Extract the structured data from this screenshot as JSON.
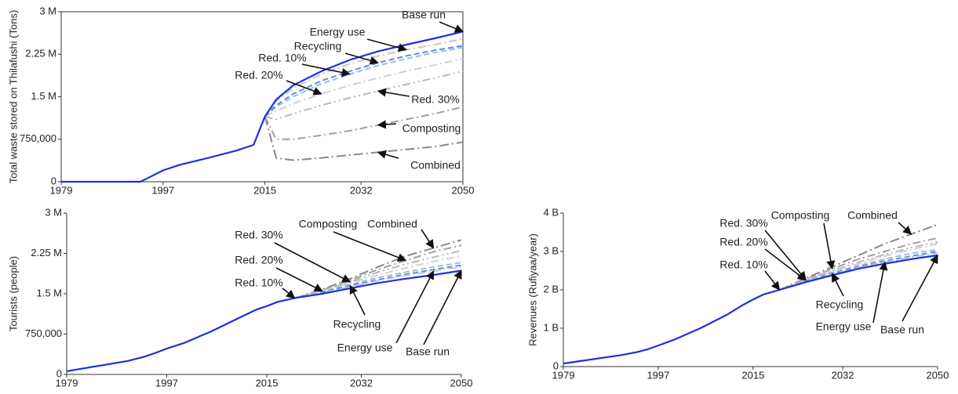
{
  "chart_data": [
    {
      "type": "line",
      "ylabel": "Total waste stored on Thilafushi (Tons)",
      "frame": true,
      "x": [
        1979,
        1990,
        1993,
        1995,
        1997,
        2000,
        2005,
        2010,
        2013,
        2015,
        2017,
        2020,
        2025,
        2030,
        2035,
        2040,
        2045,
        2050
      ],
      "xlim": [
        1979,
        2050
      ],
      "xticks": [
        1979,
        1997,
        2015,
        2032,
        2050
      ],
      "ylim": [
        0,
        3000000
      ],
      "yticks": [
        0,
        {
          "value": 750000,
          "label": "750,000"
        },
        {
          "value": 1500000,
          "label": "1.5 M"
        },
        {
          "value": 2250000,
          "label": "2.25 M"
        },
        {
          "value": 3000000,
          "label": "3 M"
        }
      ],
      "series": [
        {
          "name": "Base run",
          "color": "#1f2fe0",
          "values": [
            0,
            0,
            0,
            100000,
            200000,
            300000,
            420000,
            550000,
            650000,
            1150000,
            1450000,
            1700000,
            1950000,
            2150000,
            2300000,
            2420000,
            2530000,
            2650000
          ]
        },
        {
          "name": "Energy use",
          "color": "#c8c8c8",
          "values": [
            null,
            null,
            null,
            null,
            null,
            null,
            null,
            null,
            null,
            1150000,
            1420000,
            1650000,
            1900000,
            2080000,
            2220000,
            2330000,
            2420000,
            2520000
          ]
        },
        {
          "name": "Recycling",
          "color": "#5b8fd6",
          "values": [
            null,
            null,
            null,
            null,
            null,
            null,
            null,
            null,
            null,
            1150000,
            1350000,
            1550000,
            1780000,
            1950000,
            2100000,
            2220000,
            2320000,
            2400000
          ]
        },
        {
          "name": "Red. 10%",
          "color": "#9dbbe8",
          "values": [
            null,
            null,
            null,
            null,
            null,
            null,
            null,
            null,
            null,
            1150000,
            1320000,
            1500000,
            1730000,
            1900000,
            2050000,
            2170000,
            2280000,
            2370000
          ]
        },
        {
          "name": "Red. 20%",
          "color": "#d0d0d0",
          "values": [
            null,
            null,
            null,
            null,
            null,
            null,
            null,
            null,
            null,
            1150000,
            1250000,
            1380000,
            1550000,
            1700000,
            1830000,
            1950000,
            2060000,
            2170000
          ]
        },
        {
          "name": "Red. 30%",
          "color": "#b8b8b8",
          "values": [
            null,
            null,
            null,
            null,
            null,
            null,
            null,
            null,
            null,
            1150000,
            1100000,
            1200000,
            1350000,
            1480000,
            1600000,
            1720000,
            1830000,
            1950000
          ]
        },
        {
          "name": "Composting",
          "color": "#a0a0a0",
          "values": [
            null,
            null,
            null,
            null,
            null,
            null,
            null,
            null,
            null,
            1150000,
            750000,
            750000,
            820000,
            900000,
            1000000,
            1100000,
            1200000,
            1320000
          ]
        },
        {
          "name": "Combined",
          "color": "#888888",
          "values": [
            null,
            null,
            null,
            null,
            null,
            null,
            null,
            null,
            null,
            1150000,
            420000,
            380000,
            420000,
            470000,
            520000,
            570000,
            620000,
            700000
          ]
        }
      ]
    },
    {
      "type": "line",
      "ylabel": "Tourists (people)",
      "x": [
        1979,
        1990,
        1993,
        1995,
        1997,
        2000,
        2005,
        2010,
        2013,
        2015,
        2017,
        2020,
        2025,
        2030,
        2035,
        2040,
        2045,
        2050
      ],
      "xlim": [
        1979,
        2050
      ],
      "xticks": [
        1979,
        1997,
        2015,
        2032,
        2050
      ],
      "ylim": [
        0,
        3000000
      ],
      "yticks": [
        0,
        {
          "value": 750000,
          "label": "750,000"
        },
        {
          "value": 1500000,
          "label": "1.5 M"
        },
        {
          "value": 2250000,
          "label": "2.25 M"
        },
        {
          "value": 3000000,
          "label": "3 M"
        }
      ],
      "series": [
        {
          "name": "Base run",
          "color": "#1f2fe0",
          "values": [
            60000,
            250000,
            330000,
            400000,
            480000,
            580000,
            800000,
            1050000,
            1200000,
            1270000,
            1350000,
            1420000,
            1500000,
            1600000,
            1700000,
            1780000,
            1850000,
            1930000
          ]
        },
        {
          "name": "Energy use",
          "color": "#c8c8c8",
          "values": [
            null,
            null,
            null,
            null,
            null,
            null,
            null,
            null,
            null,
            null,
            null,
            1420000,
            1520000,
            1630000,
            1740000,
            1840000,
            1920000,
            2000000
          ]
        },
        {
          "name": "Recycling",
          "color": "#5b8fd6",
          "values": [
            null,
            null,
            null,
            null,
            null,
            null,
            null,
            null,
            null,
            null,
            null,
            1420000,
            1530000,
            1650000,
            1760000,
            1860000,
            1950000,
            2030000
          ]
        },
        {
          "name": "Red. 10%",
          "color": "#9dbbe8",
          "values": [
            null,
            null,
            null,
            null,
            null,
            null,
            null,
            null,
            null,
            null,
            null,
            1420000,
            1540000,
            1670000,
            1800000,
            1900000,
            2000000,
            2080000
          ]
        },
        {
          "name": "Red. 20%",
          "color": "#d0d0d0",
          "values": [
            null,
            null,
            null,
            null,
            null,
            null,
            null,
            null,
            null,
            null,
            null,
            1420000,
            1550000,
            1700000,
            1850000,
            1980000,
            2100000,
            2200000
          ]
        },
        {
          "name": "Red. 30%",
          "color": "#b8b8b8",
          "values": [
            null,
            null,
            null,
            null,
            null,
            null,
            null,
            null,
            null,
            null,
            null,
            1420000,
            1560000,
            1720000,
            1900000,
            2050000,
            2180000,
            2300000
          ]
        },
        {
          "name": "Composting",
          "color": "#a0a0a0",
          "values": [
            null,
            null,
            null,
            null,
            null,
            null,
            null,
            null,
            null,
            null,
            null,
            1420000,
            1570000,
            1750000,
            1950000,
            2120000,
            2280000,
            2400000
          ]
        },
        {
          "name": "Combined",
          "color": "#888888",
          "values": [
            null,
            null,
            null,
            null,
            null,
            null,
            null,
            null,
            null,
            null,
            null,
            1420000,
            1580000,
            1780000,
            2000000,
            2200000,
            2350000,
            2500000
          ]
        }
      ]
    },
    {
      "type": "line",
      "ylabel": "Revenues (Rufiyaa/year)",
      "x": [
        1979,
        1990,
        1993,
        1995,
        1997,
        2000,
        2005,
        2010,
        2013,
        2015,
        2017,
        2020,
        2025,
        2030,
        2035,
        2040,
        2045,
        2050
      ],
      "xlim": [
        1979,
        2050
      ],
      "xticks": [
        1979,
        1997,
        2015,
        2032,
        2050
      ],
      "ylim": [
        0,
        4000000000
      ],
      "yticks": [
        0,
        {
          "value": 1000000000,
          "label": "1 B"
        },
        {
          "value": 2000000000,
          "label": "2 B"
        },
        {
          "value": 3000000000,
          "label": "3 B"
        },
        {
          "value": 4000000000,
          "label": "4 B"
        }
      ],
      "series": [
        {
          "name": "Base run",
          "color": "#1f2fe0",
          "values": [
            80000000,
            300000000,
            380000000,
            450000000,
            550000000,
            700000000,
            1000000000,
            1350000000,
            1600000000,
            1750000000,
            1880000000,
            2000000000,
            2200000000,
            2380000000,
            2550000000,
            2680000000,
            2800000000,
            2900000000
          ]
        },
        {
          "name": "Energy use",
          "color": "#c8c8c8",
          "values": [
            null,
            null,
            null,
            null,
            null,
            null,
            null,
            null,
            null,
            null,
            null,
            2000000000,
            2220000000,
            2400000000,
            2580000000,
            2720000000,
            2850000000,
            2960000000
          ]
        },
        {
          "name": "Recycling",
          "color": "#5b8fd6",
          "values": [
            null,
            null,
            null,
            null,
            null,
            null,
            null,
            null,
            null,
            null,
            null,
            2000000000,
            2230000000,
            2420000000,
            2600000000,
            2750000000,
            2880000000,
            3000000000
          ]
        },
        {
          "name": "Red. 10%",
          "color": "#9dbbe8",
          "values": [
            null,
            null,
            null,
            null,
            null,
            null,
            null,
            null,
            null,
            null,
            null,
            2000000000,
            2240000000,
            2450000000,
            2630000000,
            2800000000,
            2950000000,
            3050000000
          ]
        },
        {
          "name": "Red. 20%",
          "color": "#d0d0d0",
          "values": [
            null,
            null,
            null,
            null,
            null,
            null,
            null,
            null,
            null,
            null,
            null,
            2000000000,
            2250000000,
            2480000000,
            2680000000,
            2880000000,
            3050000000,
            3200000000
          ]
        },
        {
          "name": "Red. 30%",
          "color": "#b8b8b8",
          "values": [
            null,
            null,
            null,
            null,
            null,
            null,
            null,
            null,
            null,
            null,
            null,
            2000000000,
            2260000000,
            2500000000,
            2720000000,
            2920000000,
            3100000000,
            3250000000
          ]
        },
        {
          "name": "Composting",
          "color": "#a0a0a0",
          "values": [
            null,
            null,
            null,
            null,
            null,
            null,
            null,
            null,
            null,
            null,
            null,
            2000000000,
            2270000000,
            2550000000,
            2800000000,
            3000000000,
            3200000000,
            3350000000
          ]
        },
        {
          "name": "Combined",
          "color": "#888888",
          "values": [
            null,
            null,
            null,
            null,
            null,
            null,
            null,
            null,
            null,
            null,
            null,
            2000000000,
            2300000000,
            2600000000,
            2900000000,
            3200000000,
            3450000000,
            3700000000
          ]
        }
      ]
    }
  ]
}
